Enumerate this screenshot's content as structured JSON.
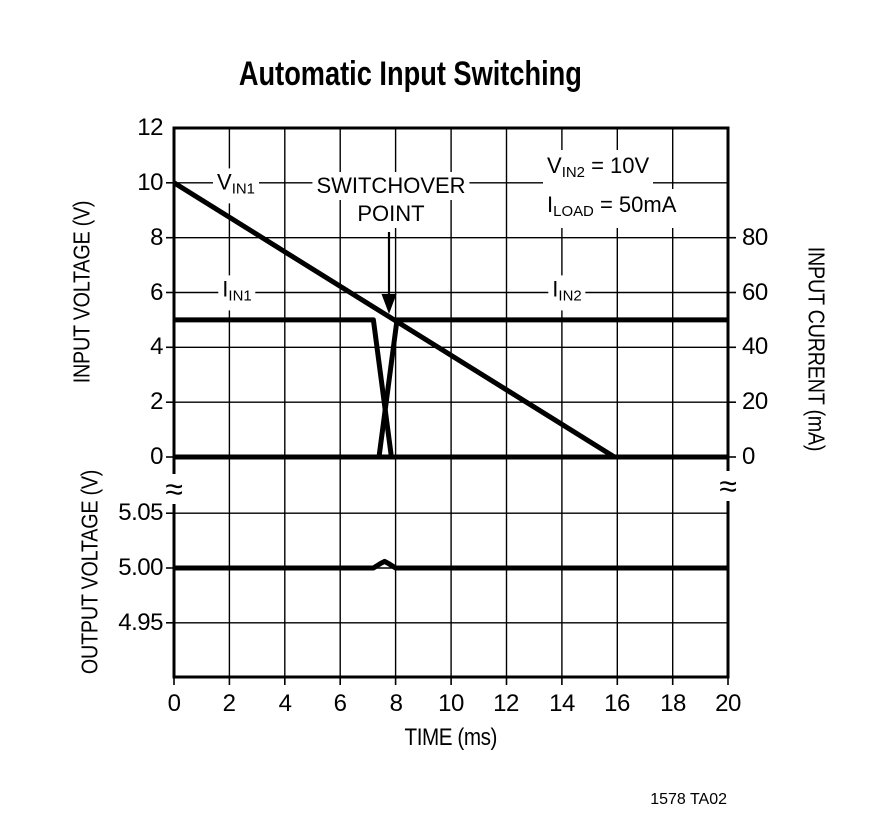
{
  "title": "Automatic Input Switching",
  "footer": {
    "code": "1578 TA02"
  },
  "axes": {
    "left_top": {
      "label": "INPUT VOLTAGE (V)",
      "ticks": [
        "12",
        "10",
        "8",
        "6",
        "4",
        "2",
        "0"
      ]
    },
    "left_bottom": {
      "label": "OUTPUT VOLTAGE (V)",
      "ticks": [
        "5.05",
        "5.00",
        "4.95"
      ]
    },
    "right": {
      "label": "INPUT CURRENT (mA)",
      "ticks": [
        "80",
        "60",
        "40",
        "20",
        "0"
      ]
    },
    "x": {
      "label": "TIME (ms)",
      "ticks": [
        "0",
        "2",
        "4",
        "6",
        "8",
        "10",
        "12",
        "14",
        "16",
        "18",
        "20"
      ]
    }
  },
  "annotations": {
    "vin1": {
      "main": "V",
      "sub": "IN1"
    },
    "iin1": {
      "main": "I",
      "sub": "IN1"
    },
    "iin2": {
      "main": "I",
      "sub": "IN2"
    },
    "switchover": {
      "line1": "SWITCHOVER",
      "line2": "POINT"
    },
    "cond1": {
      "main": "V",
      "sub": "IN2",
      "rest": " = 10V"
    },
    "cond2": {
      "main": "I",
      "sub": "LOAD",
      "rest": " = 50mA"
    },
    "axis_break": "≈"
  },
  "colors": {
    "ink": "#000000",
    "background": "#ffffff"
  },
  "chart_data": {
    "type": "line",
    "title": "Automatic Input Switching",
    "xlabel": "TIME (ms)",
    "xlim": [
      0,
      20
    ],
    "xticks": [
      0,
      2,
      4,
      6,
      8,
      10,
      12,
      14,
      16,
      18,
      20
    ],
    "grid": true,
    "conditions": [
      "VIN2 = 10V",
      "ILOAD = 50mA"
    ],
    "annotations": {
      "switchover_point_ms": 7.6
    },
    "panels": [
      {
        "ylabel": "INPUT VOLTAGE (V)",
        "ylim": [
          0,
          12
        ],
        "yticks": [
          0,
          2,
          4,
          6,
          8,
          10,
          12
        ],
        "y2label": "INPUT CURRENT (mA)",
        "y2lim": [
          0,
          120
        ],
        "y2ticks": [
          0,
          20,
          40,
          60,
          80
        ],
        "series": [
          {
            "name": "VIN1",
            "scale": "V",
            "units": "V",
            "points": [
              [
                0,
                10
              ],
              [
                15.9,
                0
              ]
            ]
          },
          {
            "name": "IIN1",
            "scale": "I",
            "units": "mA",
            "points": [
              [
                0,
                50
              ],
              [
                7.2,
                50
              ],
              [
                7.85,
                0
              ],
              [
                20,
                0
              ]
            ]
          },
          {
            "name": "IIN2",
            "scale": "I",
            "units": "mA",
            "points": [
              [
                0,
                0
              ],
              [
                7.4,
                0
              ],
              [
                8.05,
                50
              ],
              [
                20,
                50
              ]
            ]
          }
        ]
      },
      {
        "ylabel": "OUTPUT VOLTAGE (V)",
        "ylim": [
          4.9,
          5.075
        ],
        "yticks": [
          4.95,
          5.0,
          5.05
        ],
        "series": [
          {
            "name": "VOUT",
            "scale": "O",
            "units": "V",
            "points": [
              [
                0,
                5.0
              ],
              [
                7.2,
                5.0
              ],
              [
                7.45,
                5.004
              ],
              [
                7.6,
                5.006
              ],
              [
                7.75,
                5.004
              ],
              [
                8.0,
                5.0
              ],
              [
                20,
                5.0
              ]
            ]
          }
        ]
      }
    ]
  }
}
